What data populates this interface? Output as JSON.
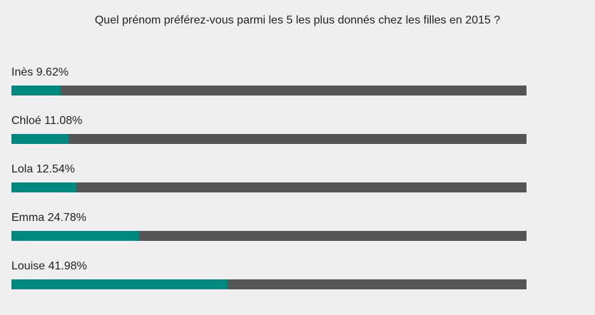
{
  "chart_data": {
    "type": "bar",
    "title": "Quel prénom préférez-vous parmi les 5 les plus donnés chez les filles en 2015 ?",
    "categories": [
      "Inès",
      "Chloé",
      "Lola",
      "Emma",
      "Louise"
    ],
    "values": [
      9.62,
      11.08,
      12.54,
      24.78,
      41.98
    ],
    "value_labels": [
      "9.62%",
      "11.08%",
      "12.54%",
      "24.78%",
      "41.98%"
    ],
    "unit": "%",
    "xlim": [
      0,
      100
    ],
    "grid": false,
    "colors": {
      "fill": "#00897f",
      "track": "#555555",
      "background": "#efefef"
    }
  }
}
